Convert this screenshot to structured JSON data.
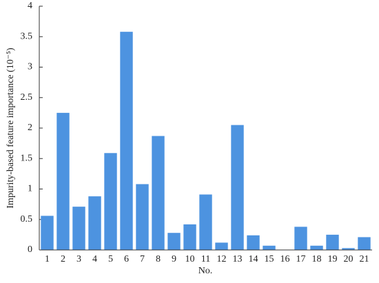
{
  "chart_data": {
    "type": "bar",
    "x_label": "No.",
    "y_label": "Impurity-based feature importance (10⁻⁵)",
    "categories": [
      "1",
      "2",
      "3",
      "4",
      "5",
      "6",
      "7",
      "8",
      "9",
      "10",
      "11",
      "12",
      "13",
      "14",
      "15",
      "16",
      "17",
      "18",
      "19",
      "20",
      "21"
    ],
    "values": [
      0.56,
      2.25,
      0.71,
      0.88,
      1.59,
      3.58,
      1.08,
      1.87,
      0.28,
      0.42,
      0.91,
      0.12,
      2.05,
      0.24,
      0.07,
      0,
      0.38,
      0.07,
      0.25,
      0.03,
      0.21
    ],
    "color": "#4d93e0",
    "ylim": [
      0,
      4
    ],
    "yticks": [
      0,
      0.5,
      1,
      1.5,
      2,
      2.5,
      3,
      3.5,
      4
    ],
    "grid": false
  }
}
